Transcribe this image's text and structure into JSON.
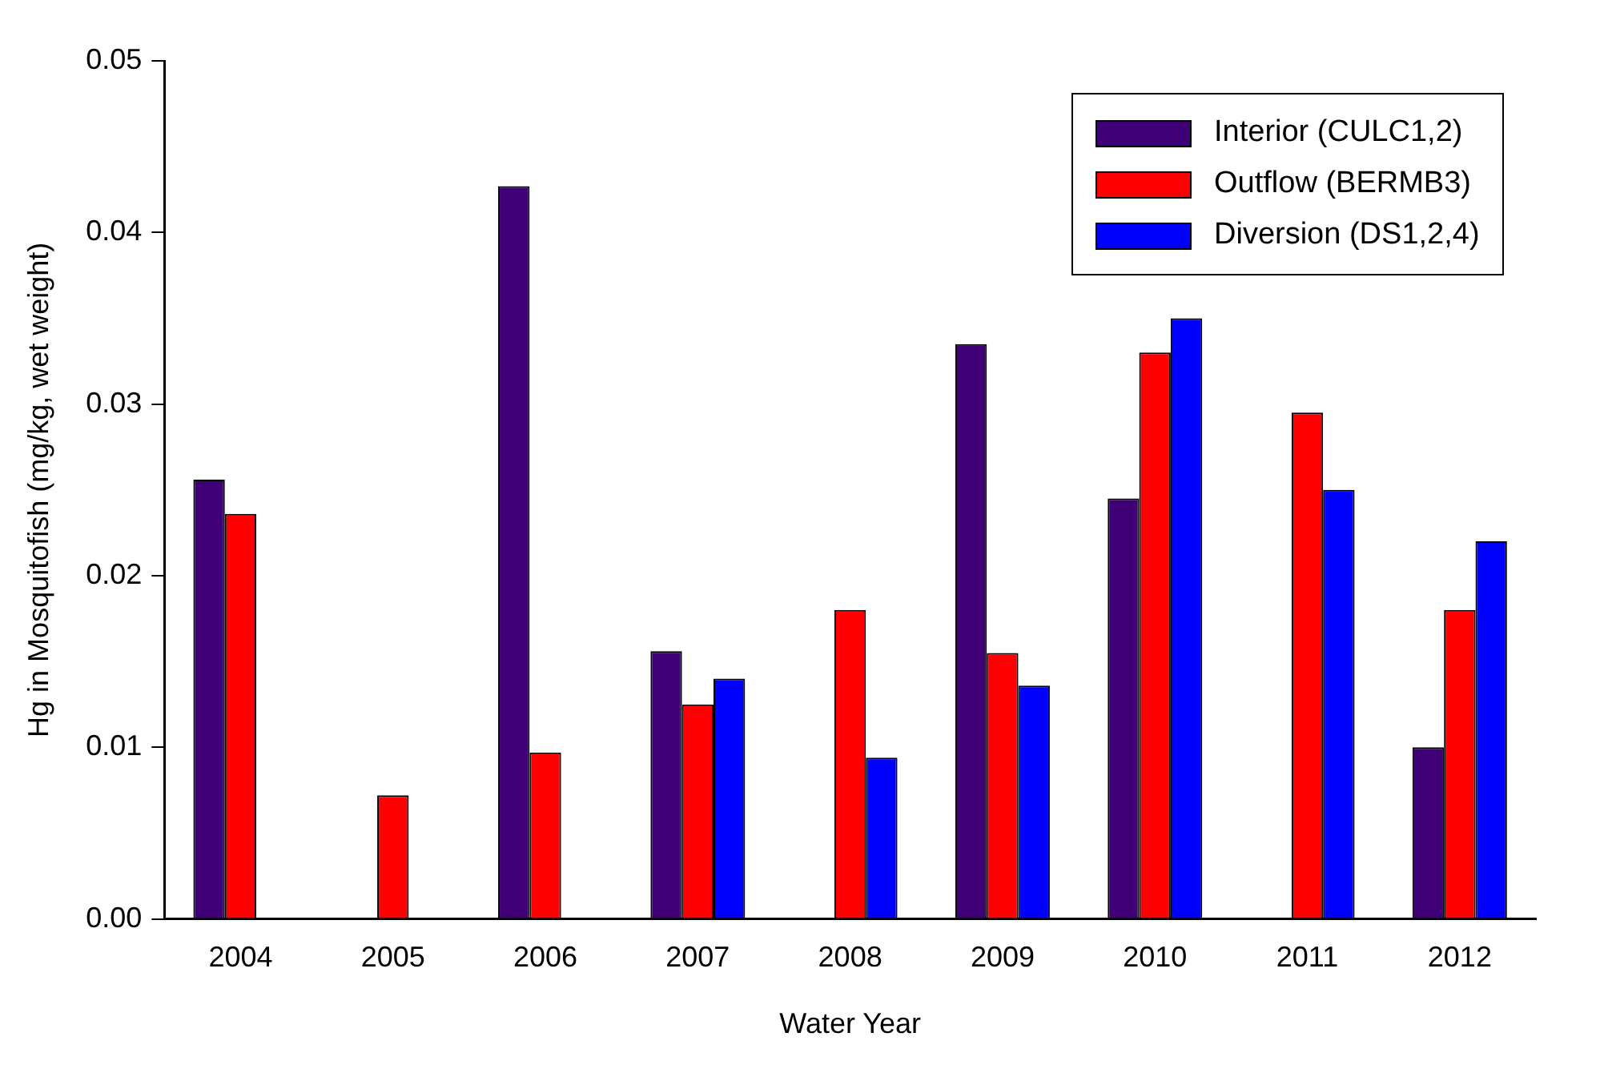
{
  "chart_data": {
    "type": "bar",
    "xlabel": "Water Year",
    "ylabel": "Hg in Mosquitofish (mg/kg, wet weight)",
    "categories": [
      "2004",
      "2005",
      "2006",
      "2007",
      "2008",
      "2009",
      "2010",
      "2011",
      "2012"
    ],
    "series": [
      {
        "name": "Interior (CULC1,2)",
        "color": "#3f0077",
        "values": [
          0.0256,
          null,
          0.0427,
          0.0156,
          null,
          0.0335,
          0.0245,
          null,
          0.01
        ]
      },
      {
        "name": "Outflow (BERMB3)",
        "color": "#ff0000",
        "values": [
          0.0236,
          0.0072,
          0.0097,
          0.0125,
          0.018,
          0.0155,
          0.033,
          0.0295,
          0.018
        ]
      },
      {
        "name": "Diversion (DS1,2,4)",
        "color": "#0000ff",
        "values": [
          null,
          null,
          null,
          0.014,
          0.0094,
          0.0136,
          0.035,
          0.025,
          0.022
        ]
      }
    ],
    "ylim": [
      0,
      0.05
    ],
    "yticks": [
      {
        "value": 0,
        "label": "0.00"
      },
      0.01,
      0.02,
      0.03,
      0.04,
      0.05
    ],
    "legend": "top right",
    "grid": false
  }
}
